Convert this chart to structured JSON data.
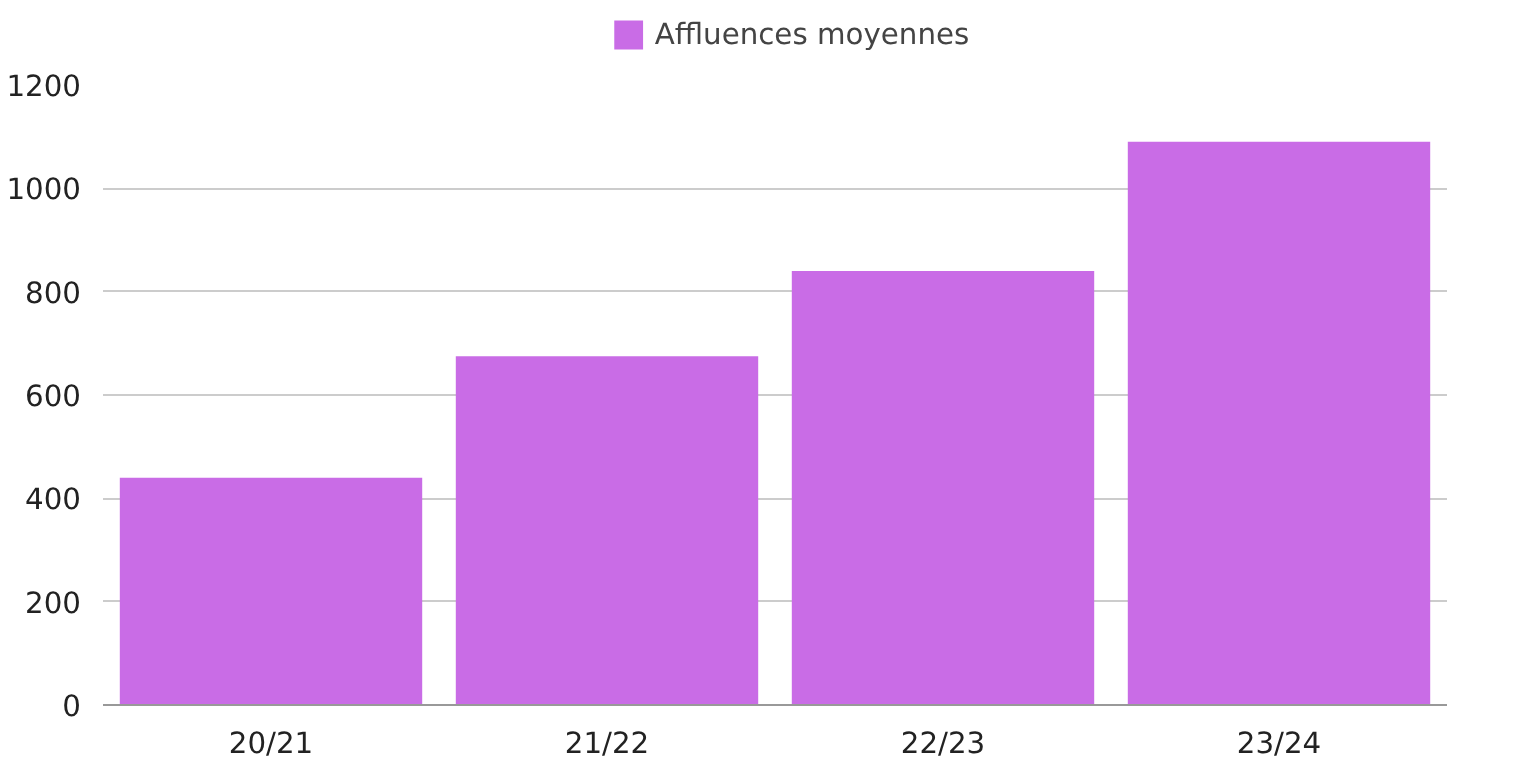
{
  "chart_data": {
    "type": "bar",
    "categories": [
      "20/21",
      "21/22",
      "22/23",
      "23/24"
    ],
    "series": [
      {
        "name": "Affluences moyennes",
        "color": "#c96ce6",
        "values": [
          440,
          675,
          840,
          1090
        ]
      }
    ],
    "ylim": [
      0,
      1200
    ],
    "yticks": [
      0,
      200,
      400,
      600,
      800,
      1000,
      1200
    ],
    "grid": "y",
    "legend": "top"
  }
}
